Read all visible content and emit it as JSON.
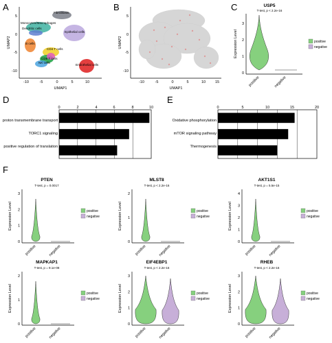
{
  "panels": {
    "a": {
      "label": "A",
      "xlabel": "UMAP1",
      "ylabel": "UMAP2",
      "xticks": [
        "-10",
        "-5",
        "0",
        "5",
        "10"
      ],
      "yticks": [
        "-10",
        "-5",
        "0",
        "5"
      ],
      "clusters": [
        {
          "name": "Fibroblasts",
          "color": "#7b7f88"
        },
        {
          "name": "Monocytes/Macrophages",
          "color": "#3fb3a2"
        },
        {
          "name": "Dendritic cells",
          "color": "#5e7fd0"
        },
        {
          "name": "Epithelial cells",
          "color": "#b7a3dc"
        },
        {
          "name": "B cells",
          "color": "#f08a3a"
        },
        {
          "name": "CD4 T cells",
          "color": "#f2d230"
        },
        {
          "name": "CD8 T cells",
          "color": "#27a44b"
        },
        {
          "name": "NK cells",
          "color": "#e35cc0"
        },
        {
          "name": "Endothelial cells",
          "color": "#e02a2a"
        }
      ]
    },
    "b": {
      "label": "B",
      "xlabel": "UMAP1",
      "ylabel": "UMAP2",
      "xticks": [
        "-10",
        "-5",
        "0",
        "5",
        "10",
        "15"
      ],
      "yticks": [
        "-10",
        "-5",
        "0",
        "5"
      ]
    },
    "c": {
      "label": "C",
      "title": "USP5",
      "subtitle": "T-test, p < 2.2e-16",
      "ylabel": "Expression Level",
      "yticks": [
        "0",
        "1",
        "2",
        "3"
      ],
      "groups": [
        "positive",
        "negative"
      ],
      "legend": [
        "positive",
        "negative"
      ]
    },
    "d": {
      "label": "D",
      "xticks": [
        "0",
        "2",
        "4",
        "6",
        "8",
        "10"
      ],
      "terms": [
        "proton transmembrane transport",
        "TORC1 signaling",
        "positive regulation of translation"
      ]
    },
    "e": {
      "label": "E",
      "xticks": [
        "0",
        "5",
        "10",
        "15",
        "20"
      ],
      "terms": [
        "Oxidative phosphorylation",
        "mTOR signaling pathway",
        "Thermogenesis"
      ]
    },
    "f": {
      "label": "F",
      "violins": [
        {
          "gene": "PTEN",
          "pvalue": "T-test, p = 0.0017",
          "yticks": [
            "0",
            "1",
            "2",
            "3"
          ]
        },
        {
          "gene": "MLST8",
          "pvalue": "T-test, p < 2.2e-16",
          "yticks": [
            "0",
            "1",
            "2"
          ]
        },
        {
          "gene": "AKT1S1",
          "pvalue": "T-test, p = 5.5e-15",
          "yticks": [
            "0",
            "1",
            "2",
            "3",
            "4"
          ]
        },
        {
          "gene": "MAPKAP1",
          "pvalue": "T-test, p = 9.1e-08",
          "yticks": [
            "0",
            "1",
            "2"
          ]
        },
        {
          "gene": "EIF4EBP1",
          "pvalue": "T-test, p < 2.2e-16",
          "yticks": [
            "0",
            "1",
            "2",
            "3"
          ]
        },
        {
          "gene": "RHEB",
          "pvalue": "T-test, p < 2.2e-16",
          "yticks": [
            "0",
            "1",
            "2",
            "3"
          ]
        }
      ],
      "ylabel": "Expression Level",
      "groups": [
        "positive",
        "negative"
      ],
      "legend": [
        "positive",
        "negative"
      ]
    }
  },
  "colors": {
    "positive": "#86d07e",
    "negative": "#c7afd8",
    "bar": "#000000"
  },
  "chart_data": [
    {
      "type": "bar",
      "panel": "D",
      "orientation": "horizontal",
      "categories": [
        "proton transmembrane transport",
        "TORC1 signaling",
        "positive regulation of translation"
      ],
      "values": [
        9.8,
        7.6,
        6.3
      ],
      "xlim": [
        0,
        10
      ],
      "grid": true
    },
    {
      "type": "bar",
      "panel": "E",
      "orientation": "horizontal",
      "categories": [
        "Oxidative phosphorylation",
        "mTOR signaling pathway",
        "Thermogenesis"
      ],
      "values": [
        15.5,
        14.2,
        12.0
      ],
      "xlim": [
        0,
        20
      ],
      "grid": true
    }
  ]
}
